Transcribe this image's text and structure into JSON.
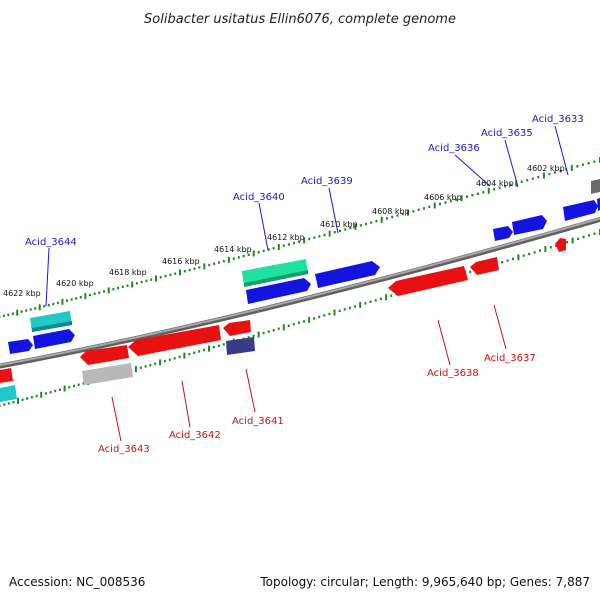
{
  "title": "Solibacter usitatus Ellin6076, complete genome",
  "footer": {
    "accession": "Accession: NC_008536",
    "topology": "Topology: circular; Length: 9,965,640 bp; Genes: 7,887"
  },
  "kbp_labels": [
    "4602 kbp",
    "4604 kbp",
    "4606 kbp",
    "4608 kbp",
    "4610 kbp",
    "4612 kbp",
    "4614 kbp",
    "4616 kbp",
    "4618 kbp",
    "4620 kbp",
    "4622 kbp"
  ],
  "gene_labels_top": [
    "Acid_3633",
    "Acid_3635",
    "Acid_3636",
    "Acid_3639",
    "Acid_3640",
    "Acid_3644"
  ],
  "gene_labels_bottom": [
    "Acid_3637",
    "Acid_3638",
    "Acid_3641",
    "Acid_3642",
    "Acid_3643"
  ],
  "colors": {
    "blue": "#1414e0",
    "red": "#e81010",
    "cyan": "#20c8c8",
    "green": "#20e0a0",
    "gray": "#b8b8b8",
    "purple": "#3a3a8a",
    "darkgray": "#6a6a6a",
    "tick": "#228822",
    "backbone": "#808080",
    "label_blue": "#1a1acc",
    "label_red": "#cc1111"
  }
}
